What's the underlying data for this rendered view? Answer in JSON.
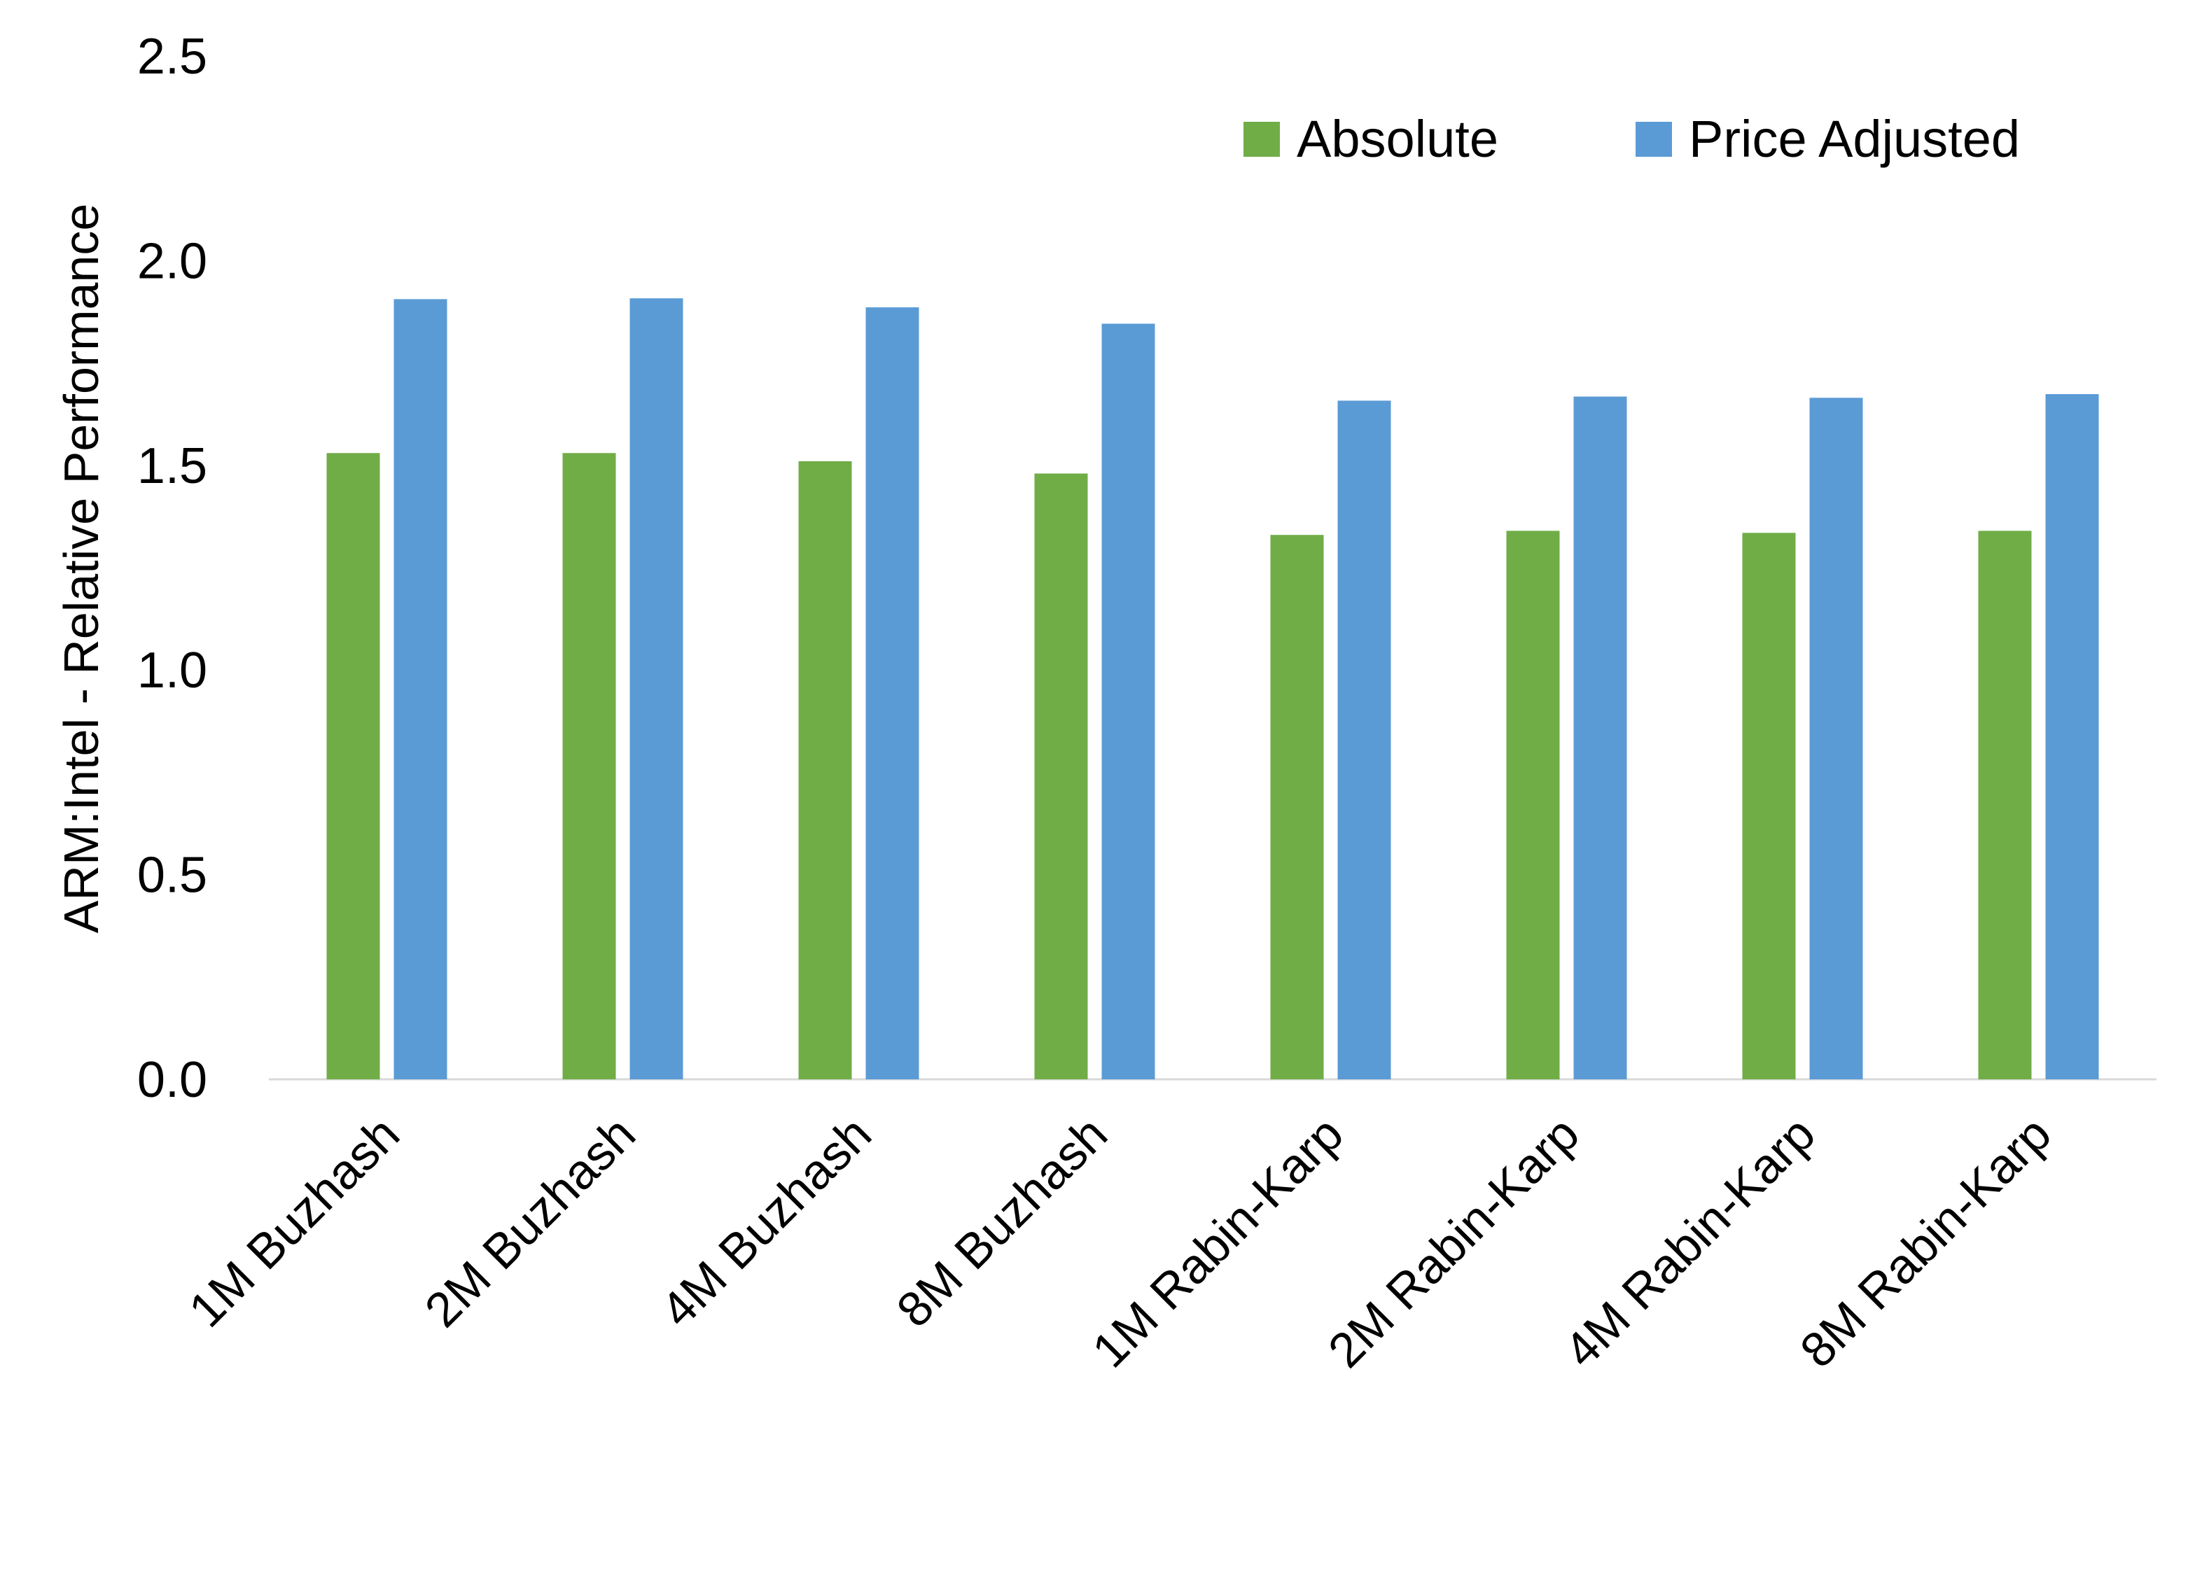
{
  "chart_data": {
    "type": "bar",
    "title": "",
    "xlabel": "",
    "ylabel": "ARM:Intel - Relative Performance",
    "ylim": [
      0,
      2.5
    ],
    "yticks": [
      "0.0",
      "0.5",
      "1.0",
      "1.5",
      "2.0",
      "2.5"
    ],
    "grid": false,
    "legend_position": "top-right",
    "categories": [
      "1M Buzhash",
      "2M Buzhash",
      "4M Buzhash",
      "8M Buzhash",
      "1M Rabin-Karp",
      "2M Rabin-Karp",
      "4M Rabin-Karp",
      "8M Rabin-Karp"
    ],
    "series": [
      {
        "name": "Absolute",
        "color": "#70ad47",
        "values": [
          1.53,
          1.53,
          1.51,
          1.48,
          1.33,
          1.34,
          1.335,
          1.34
        ]
      },
      {
        "name": "Price Adjusted",
        "color": "#5b9bd5",
        "values": [
          1.906,
          1.908,
          1.886,
          1.846,
          1.658,
          1.668,
          1.665,
          1.674
        ]
      }
    ]
  }
}
